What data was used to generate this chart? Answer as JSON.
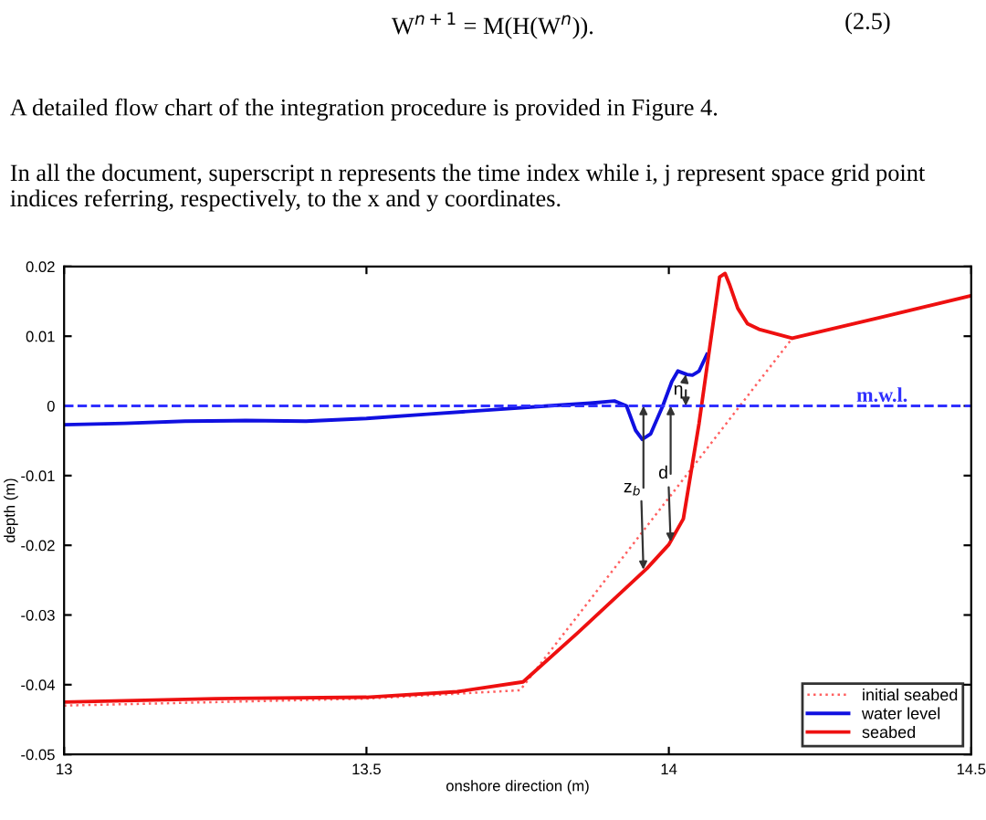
{
  "chart_data": {
    "type": "line",
    "xlabel": "onshore direction (m)",
    "ylabel": "depth (m)",
    "xlim": [
      13,
      14.5
    ],
    "xticks": [
      13,
      13.5,
      14,
      14.5
    ],
    "ylim": [
      -0.05,
      0.02
    ],
    "yticks": [
      -0.05,
      -0.04,
      -0.03,
      -0.02,
      -0.01,
      0,
      0.01,
      0.02
    ],
    "grid": false,
    "legend": "bottom right",
    "series": [
      {
        "name": "initial seabed",
        "color": "#ff6060",
        "line_style": "dotted",
        "x": [
          13,
          13.25,
          13.5,
          13.754,
          14.204,
          14.5
        ],
        "values": [
          -0.043,
          -0.0425,
          -0.042,
          -0.0408,
          0.0097,
          0.0158
        ]
      },
      {
        "name": "water level",
        "color": "#1010e0",
        "line_style": "solid",
        "x": [
          13,
          13.1,
          13.2,
          13.3,
          13.4,
          13.5,
          13.6,
          13.7,
          13.8,
          13.87,
          13.91,
          13.93,
          13.945,
          13.956,
          13.97,
          13.99,
          14.005,
          14.015,
          14.03,
          14.039,
          14.05,
          14.063
        ],
        "values": [
          -0.0027,
          -0.0025,
          -0.0022,
          -0.0021,
          -0.0022,
          -0.0018,
          -0.0012,
          -0.0006,
          0.0,
          0.0004,
          0.0007,
          0.0,
          -0.0035,
          -0.0048,
          -0.004,
          0.0,
          0.0035,
          0.005,
          0.0045,
          0.0044,
          0.005,
          0.0074
        ]
      },
      {
        "name": "seabed",
        "color": "#ee1010",
        "line_style": "solid",
        "x": [
          13,
          13.25,
          13.5,
          13.65,
          13.759,
          13.85,
          13.964,
          14.0,
          14.024,
          14.05,
          14.084,
          14.093,
          14.1,
          14.114,
          14.13,
          14.149,
          14.204,
          14.35,
          14.5
        ],
        "values": [
          -0.0425,
          -0.042,
          -0.0418,
          -0.041,
          -0.0396,
          -0.0325,
          -0.0233,
          -0.0199,
          -0.0162,
          -0.0025,
          0.0185,
          0.019,
          0.0175,
          0.014,
          0.0118,
          0.011,
          0.0097,
          0.0127,
          0.0158
        ]
      }
    ],
    "ref_lines": [
      {
        "axis": "y",
        "value": 0,
        "label": "m.w.l.",
        "color": "#3030ff",
        "line_style": "dashed"
      }
    ],
    "annotations": [
      "W$^{n+1}$ = M(H(W$^{n}$)).",
      "(2.5)",
      "A detailed flow chart of the integration procedure is provided in Figure 4.",
      "In all the document, superscript n represents the time index while i, j represent space grid point indices referring, respectively, to the x and y coordinates.",
      {
        "text": "z$_{b}$",
        "x": 13.958,
        "y": -0.0235
      },
      {
        "text": "d",
        "x": 14.003,
        "y": -0.0195
      },
      {
        "text": "η",
        "x": 14.028,
        "y": 0.0045
      }
    ]
  }
}
